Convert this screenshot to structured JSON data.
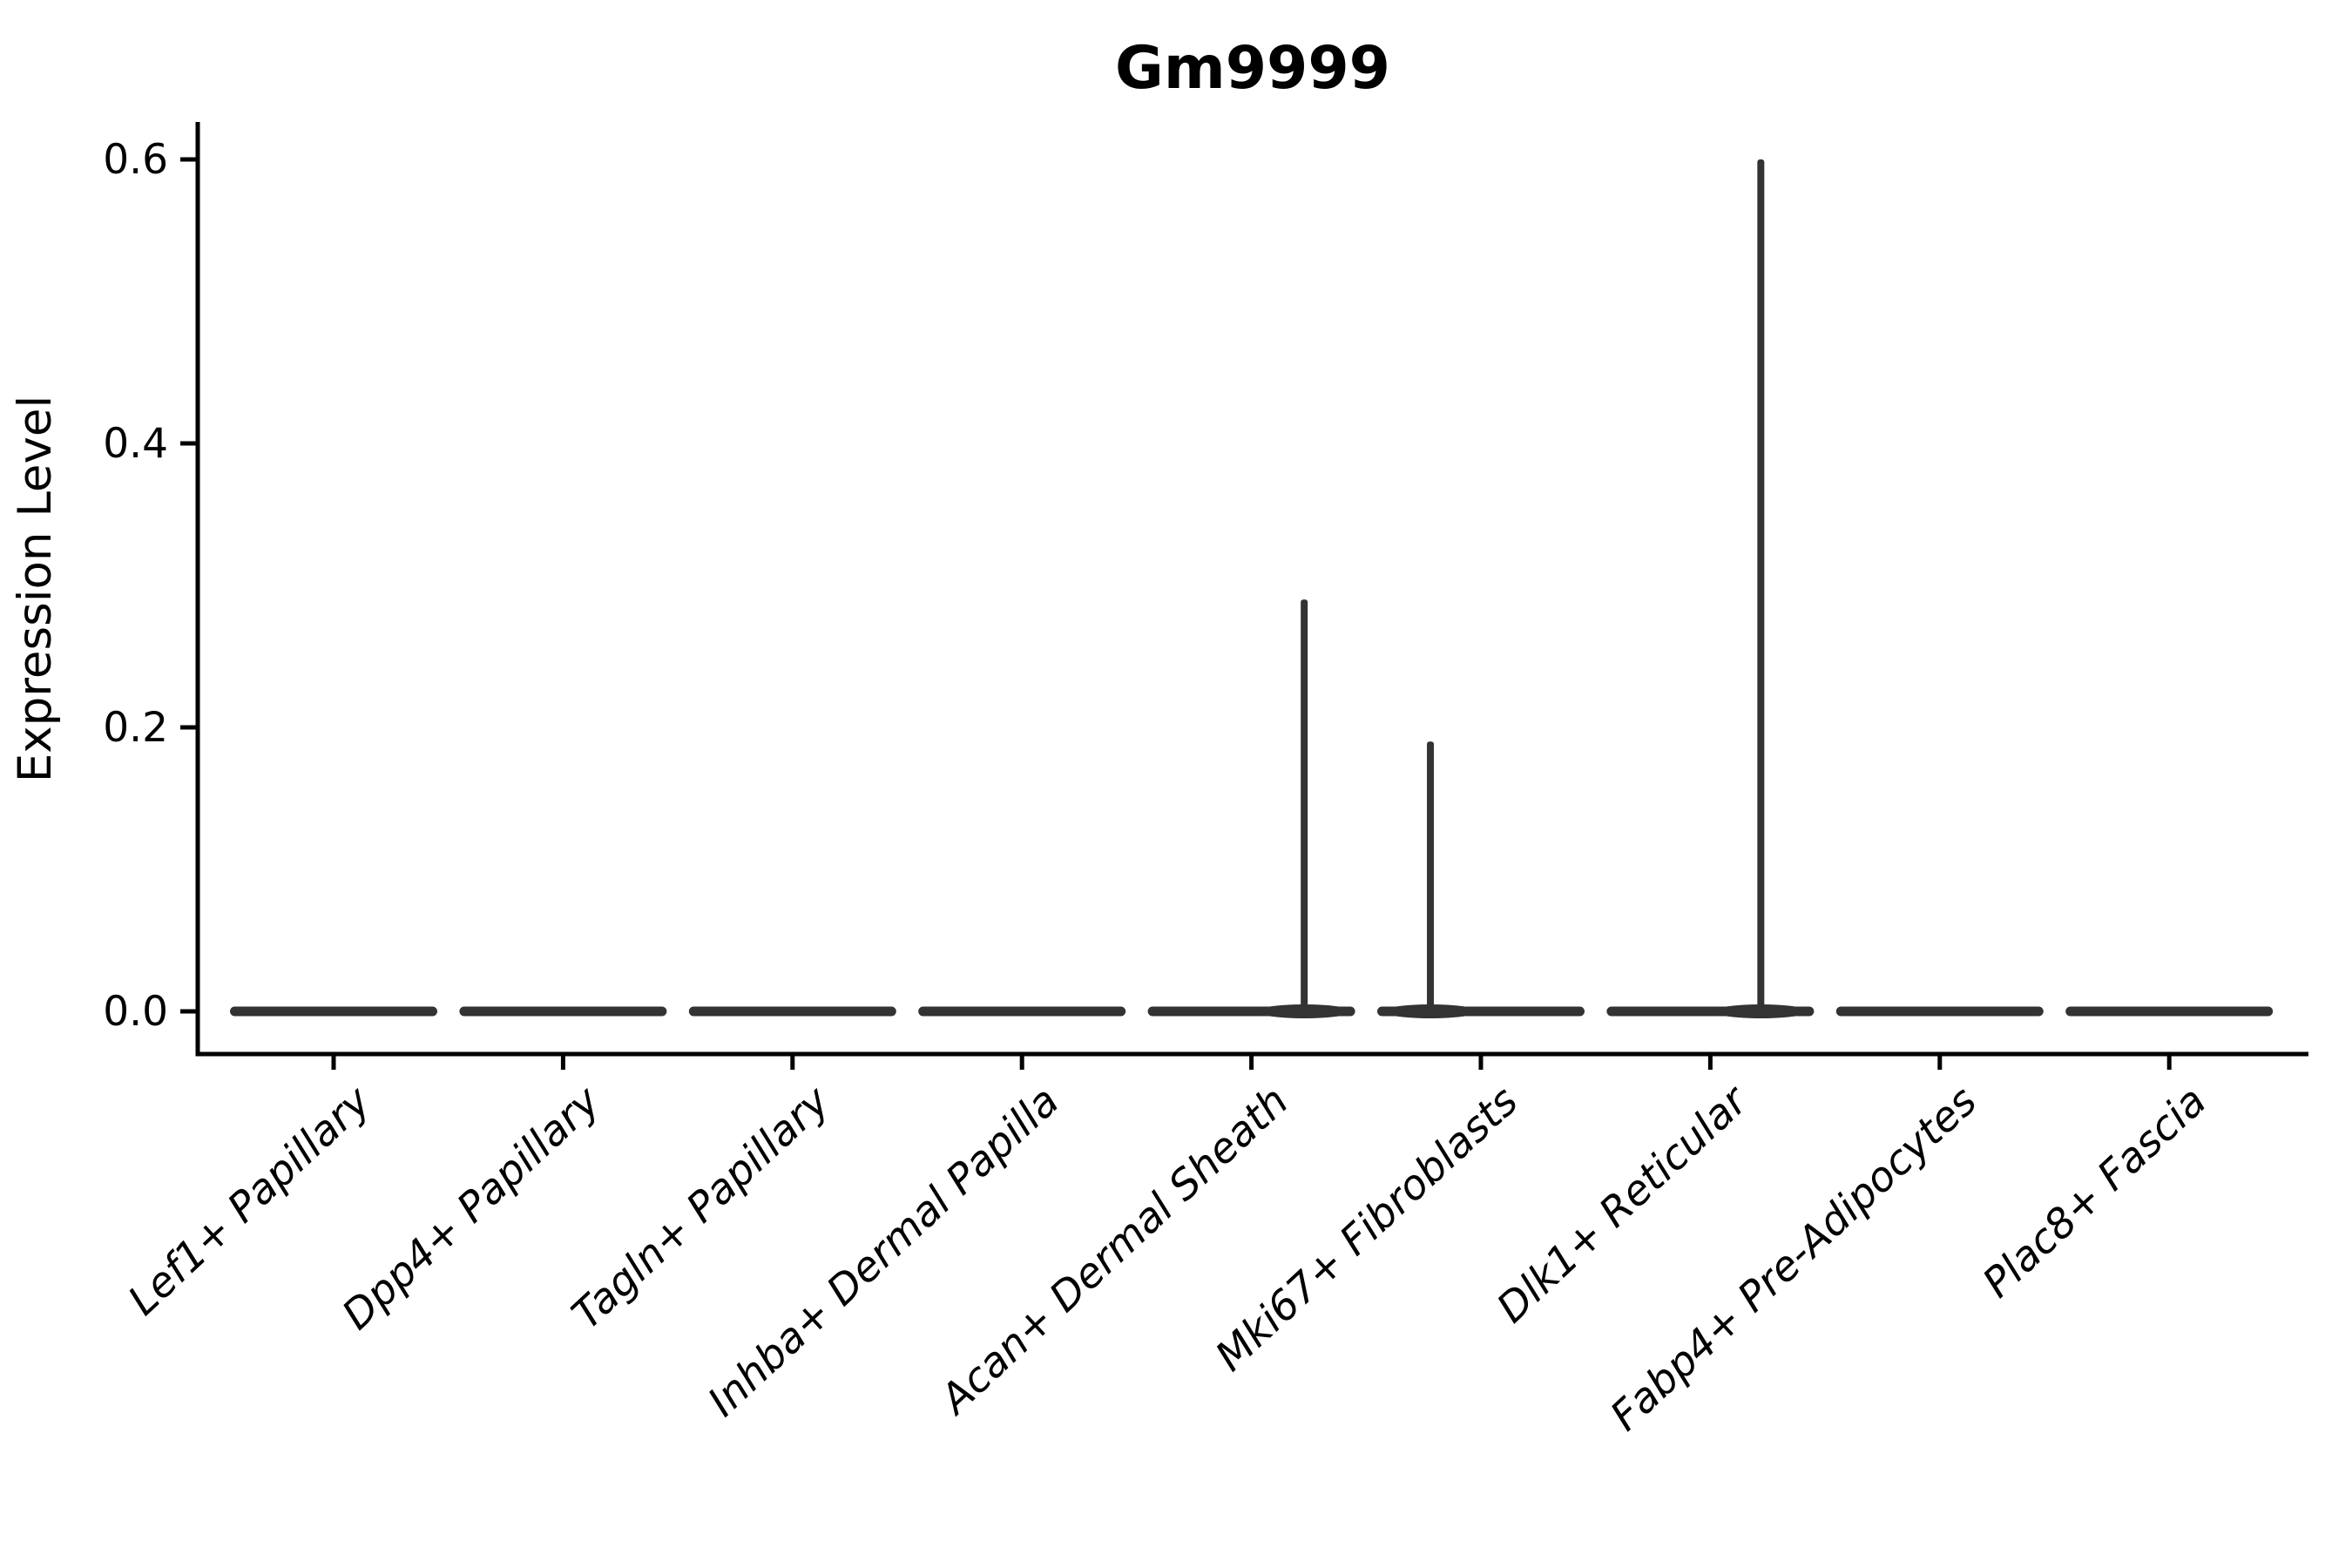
{
  "figure_title": "Gm9999",
  "chart_data": {
    "type": "violin",
    "title": "Gm9999",
    "xlabel": "",
    "ylabel": "Expression Level",
    "categories": [
      "Lef1+ Papillary",
      "Dpp4+ Papillary",
      "Tagln+ Papillary",
      "Inhba+ Dermal Papilla",
      "Acan+ Dermal Sheath",
      "Mki67+ Fibroblasts",
      "Dlk1+ Reticular",
      "Fabp4+ Pre-Adipocytes",
      "Plac8+ Fascia"
    ],
    "violins": [
      {
        "category": "Lef1+ Papillary",
        "baseline": 0.0,
        "peak": 0.0,
        "peak_x_offset": 0
      },
      {
        "category": "Dpp4+ Papillary",
        "baseline": 0.0,
        "peak": 0.0,
        "peak_x_offset": 0
      },
      {
        "category": "Tagln+ Papillary",
        "baseline": 0.0,
        "peak": 0.0,
        "peak_x_offset": 0
      },
      {
        "category": "Inhba+ Dermal Papilla",
        "baseline": 0.0,
        "peak": 0.0,
        "peak_x_offset": 0
      },
      {
        "category": "Acan+ Dermal Sheath",
        "baseline": 0.0,
        "peak": 0.29,
        "peak_x_offset": 0.23
      },
      {
        "category": "Mki67+ Fibroblasts",
        "baseline": 0.0,
        "peak": 0.19,
        "peak_x_offset": -0.22
      },
      {
        "category": "Dlk1+ Reticular",
        "baseline": 0.0,
        "peak": 0.6,
        "peak_x_offset": 0.22
      },
      {
        "category": "Fabp4+ Pre-Adipocytes",
        "baseline": 0.0,
        "peak": 0.0,
        "peak_x_offset": 0
      },
      {
        "category": "Plac8+ Fascia",
        "baseline": 0.0,
        "peak": 0.0,
        "peak_x_offset": 0
      }
    ],
    "yticks": [
      0.0,
      0.2,
      0.4,
      0.6
    ],
    "ytick_labels": [
      "0.0",
      "0.2",
      "0.4",
      "0.6"
    ],
    "ylim": [
      -0.03,
      0.627
    ],
    "grid": false,
    "legend": "none",
    "colors": {
      "violin": "#333333",
      "axis": "#000000",
      "text": "#000000",
      "background": "#ffffff"
    }
  }
}
